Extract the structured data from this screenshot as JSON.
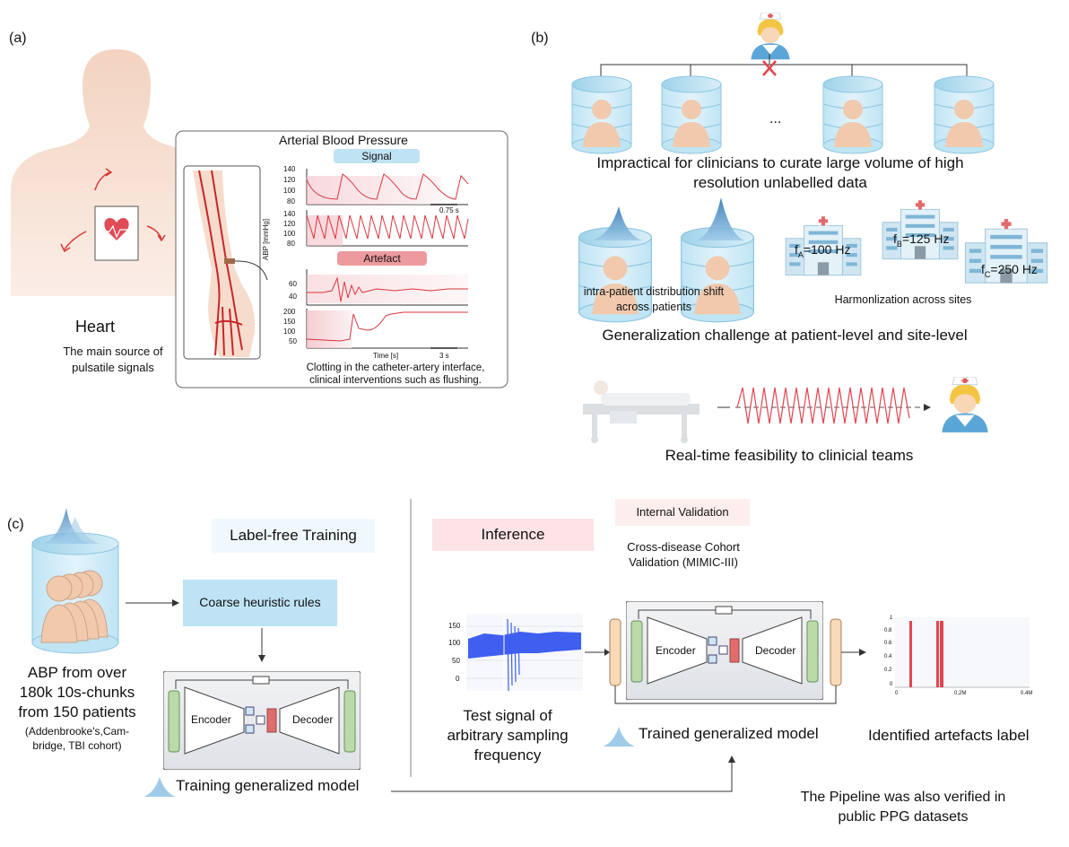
{
  "panel_a": {
    "label": "(a)",
    "heart_title": "Heart",
    "heart_desc_1": "The main source of",
    "heart_desc_2": "pulsatile signals",
    "abp_title": "Arterial Blood Pressure",
    "signal_tag": "Signal",
    "artefact_tag": "Artefact",
    "y_axis_label": "ABP [mmHg]",
    "ticks_signal_1": [
      "140",
      "120",
      "100",
      "80"
    ],
    "ticks_signal_2": [
      "140",
      "120",
      "100",
      "80"
    ],
    "ticks_artefact_1": [
      "60",
      "40"
    ],
    "ticks_artefact_2": [
      "200",
      "150",
      "100",
      "50"
    ],
    "scale_signal": "0.75 s",
    "scale_artefact": "3 s",
    "time_label": "Time [s]",
    "caption_1": "Clotting in the catheter-artery interface,",
    "caption_2": "clinical interventions such as flushing."
  },
  "panel_b": {
    "label": "(b)",
    "ellipsis": "...",
    "impractical_1": "Impractical for clinicians to curate large volume of high",
    "impractical_2": "resolution unlabelled data",
    "shift_1": "intra-patient distribution shift",
    "shift_2": "across patients",
    "freq_a_prefix": "f",
    "freq_a_sub": "A",
    "freq_a_val": "=100 Hz",
    "freq_b_prefix": "f",
    "freq_b_sub": "B",
    "freq_b_val": "=125 Hz",
    "freq_c_prefix": "f",
    "freq_c_sub": "C",
    "freq_c_val": "=250 Hz",
    "harmonization": "Harmonlization across sites",
    "generalization": "Generalization challenge at patient-level and site-level",
    "realtime": "Real-time feasibility to clinicial teams"
  },
  "panel_c": {
    "label": "(c)",
    "abp_1": "ABP from over",
    "abp_2": "180k 10s-chunks",
    "abp_3": "from 150 patients",
    "cohort_1": "(Addenbrooke's,Cam-",
    "cohort_2": "bridge, TBI cohort)",
    "label_free": "Label-free Training",
    "coarse": "Coarse heuristic rules",
    "encoder": "Encoder",
    "decoder": "Decoder",
    "training_model": "Training generalized model",
    "inference": "Inference",
    "internal": "Internal Validation",
    "cross_1": "Cross-disease Cohort",
    "cross_2": "Validation (MIMIC-III)",
    "test_ticks": [
      "150",
      "100",
      "50",
      "0"
    ],
    "test_1": "Test signal of",
    "test_2": "arbitrary sampling",
    "test_3": "frequency",
    "trained_model": "Trained generalized model",
    "out_ticks_y": [
      "1",
      "0.8",
      "0.6",
      "0.4",
      "0.2",
      "0"
    ],
    "out_ticks_x": [
      "0",
      "0.2M",
      "0.4M"
    ],
    "identified": "Identified artefacts label",
    "pipeline_1": "The Pipeline was also verified in",
    "pipeline_2": "public PPG datasets"
  }
}
